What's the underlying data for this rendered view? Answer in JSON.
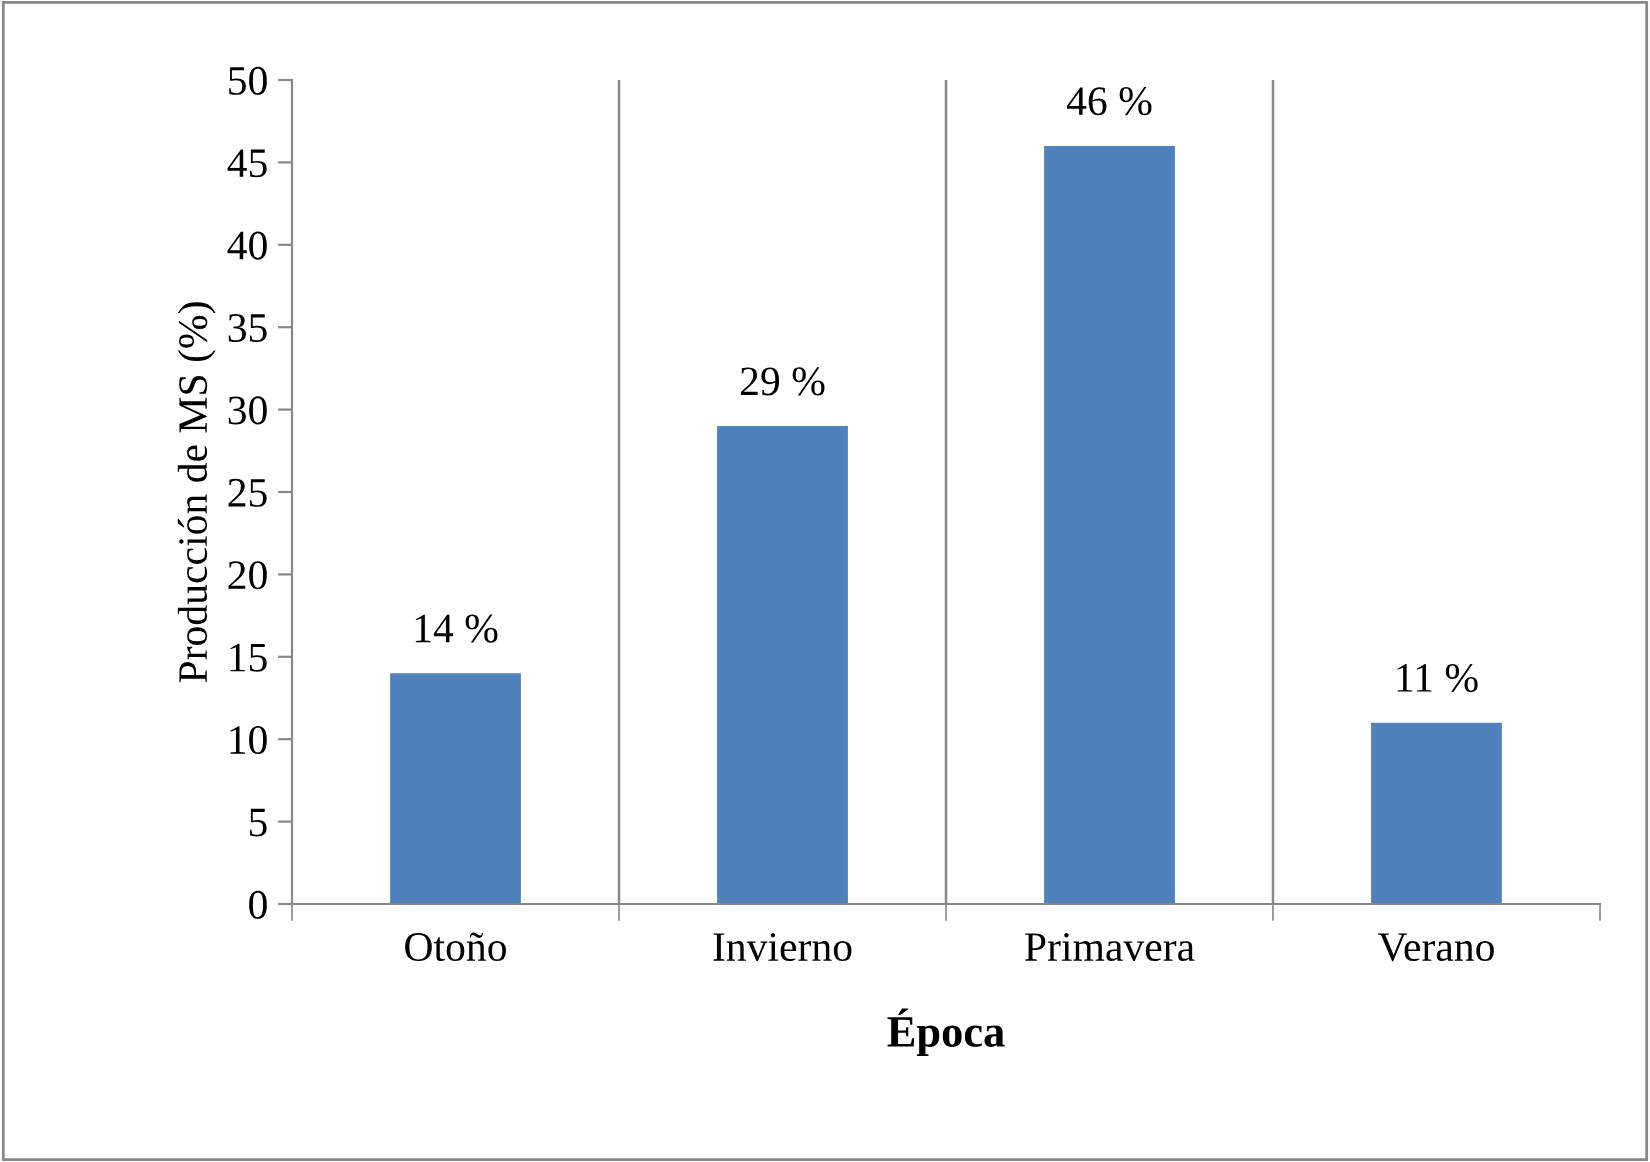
{
  "chart_data": {
    "type": "bar",
    "xlabel": "Época",
    "ylabel": "Producción de MS (%)",
    "categories": [
      "Otoño",
      "Invierno",
      "Primavera",
      "Verano"
    ],
    "values": [
      14,
      29,
      46,
      11
    ],
    "color": "#4f81bd",
    "value_labels": [
      "14 %",
      "29 %",
      "46 %",
      "11 %"
    ],
    "ylim": [
      0,
      50
    ],
    "yticks": [
      0,
      5,
      10,
      15,
      20,
      25,
      30,
      35,
      40,
      45,
      50
    ],
    "grid": "x",
    "legend": false
  }
}
